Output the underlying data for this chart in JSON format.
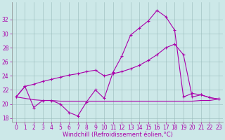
{
  "xlabel": "Windchill (Refroidissement éolien,°C)",
  "background_color": "#cce8e8",
  "line_color": "#aa00aa",
  "xlim": [
    -0.5,
    23.5
  ],
  "ylim": [
    17.5,
    34.5
  ],
  "yticks": [
    18,
    20,
    22,
    24,
    26,
    28,
    30,
    32
  ],
  "xticks": [
    0,
    1,
    2,
    3,
    4,
    5,
    6,
    7,
    8,
    9,
    10,
    11,
    12,
    13,
    14,
    15,
    16,
    17,
    18,
    19,
    20,
    21,
    22,
    23
  ],
  "line1_x": [
    0,
    1,
    2,
    3,
    4,
    5,
    6,
    7,
    8,
    9,
    10,
    11,
    12,
    13,
    14,
    15,
    16,
    17,
    18,
    19,
    20,
    21,
    22,
    23
  ],
  "line1_y": [
    21.0,
    22.5,
    19.5,
    20.5,
    20.5,
    20.0,
    18.8,
    18.3,
    20.3,
    22.0,
    20.8,
    24.5,
    26.8,
    29.8,
    30.8,
    31.8,
    33.3,
    32.4,
    30.5,
    21.0,
    21.5,
    21.3,
    20.9,
    20.7
  ],
  "line2_x": [
    0,
    1,
    2,
    3,
    4,
    5,
    6,
    7,
    8,
    9,
    10,
    11,
    12,
    13,
    14,
    15,
    16,
    17,
    18,
    19,
    20,
    21,
    22,
    23
  ],
  "line2_y": [
    21.0,
    22.5,
    22.8,
    23.2,
    23.5,
    23.8,
    24.1,
    24.3,
    24.6,
    24.8,
    24.0,
    24.3,
    24.6,
    25.0,
    25.5,
    26.2,
    27.0,
    28.0,
    28.5,
    27.0,
    21.0,
    21.3,
    20.9,
    20.7
  ],
  "line3_x": [
    0,
    1,
    2,
    3,
    4,
    5,
    6,
    7,
    8,
    9,
    10,
    11,
    12,
    13,
    14,
    15,
    16,
    17,
    18,
    19,
    20,
    21,
    22,
    23
  ],
  "line3_y": [
    21.0,
    20.8,
    20.6,
    20.5,
    20.5,
    20.4,
    20.4,
    20.4,
    20.4,
    20.4,
    20.4,
    20.4,
    20.4,
    20.4,
    20.4,
    20.4,
    20.4,
    20.4,
    20.4,
    20.4,
    20.4,
    20.5,
    20.5,
    20.7
  ],
  "tick_fontsize": 5.5,
  "xlabel_fontsize": 6.0
}
